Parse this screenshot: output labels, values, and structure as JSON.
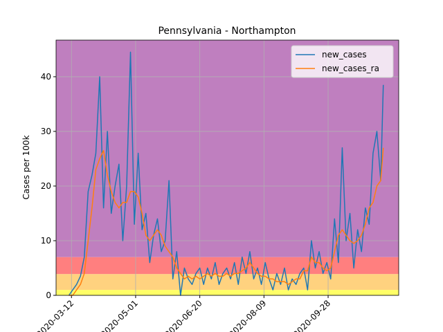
{
  "chart_data": {
    "type": "line",
    "title": "Pennsylvania - Northampton",
    "y_label": "Cases per 100k",
    "x": [
      "2020-03-10",
      "2020-03-13",
      "2020-03-16",
      "2020-03-19",
      "2020-03-22",
      "2020-03-25",
      "2020-03-28",
      "2020-03-31",
      "2020-04-03",
      "2020-04-06",
      "2020-04-09",
      "2020-04-12",
      "2020-04-15",
      "2020-04-18",
      "2020-04-21",
      "2020-04-24",
      "2020-04-27",
      "2020-04-30",
      "2020-05-03",
      "2020-05-06",
      "2020-05-09",
      "2020-05-12",
      "2020-05-15",
      "2020-05-18",
      "2020-05-21",
      "2020-05-24",
      "2020-05-27",
      "2020-05-30",
      "2020-06-02",
      "2020-06-05",
      "2020-06-08",
      "2020-06-11",
      "2020-06-14",
      "2020-06-17",
      "2020-06-20",
      "2020-06-23",
      "2020-06-26",
      "2020-06-29",
      "2020-07-02",
      "2020-07-05",
      "2020-07-08",
      "2020-07-11",
      "2020-07-14",
      "2020-07-17",
      "2020-07-20",
      "2020-07-23",
      "2020-07-26",
      "2020-07-29",
      "2020-08-01",
      "2020-08-04",
      "2020-08-07",
      "2020-08-10",
      "2020-08-13",
      "2020-08-16",
      "2020-08-19",
      "2020-08-22",
      "2020-08-25",
      "2020-08-28",
      "2020-08-31",
      "2020-09-03",
      "2020-09-06",
      "2020-09-09",
      "2020-09-12",
      "2020-09-15",
      "2020-09-18",
      "2020-09-21",
      "2020-09-24",
      "2020-09-27",
      "2020-09-30",
      "2020-10-03",
      "2020-10-06",
      "2020-10-09",
      "2020-10-12",
      "2020-10-15",
      "2020-10-18",
      "2020-10-21",
      "2020-10-24",
      "2020-10-27",
      "2020-10-30",
      "2020-11-02",
      "2020-11-05",
      "2020-11-08",
      "2020-11-10"
    ],
    "series": [
      {
        "name": "new_cases",
        "color": "#1f77b4",
        "values": [
          0,
          1,
          2,
          3.5,
          7,
          19,
          22,
          26,
          40,
          16,
          30,
          15,
          20,
          24,
          10,
          20,
          44.5,
          13,
          26,
          12,
          15,
          6,
          11,
          14,
          8,
          10,
          21,
          3,
          8,
          0,
          5,
          3,
          2,
          4,
          5,
          2,
          5,
          3,
          6,
          2,
          4,
          5,
          3,
          6,
          2,
          7,
          4,
          8,
          3,
          5,
          2,
          6,
          3,
          1,
          4,
          2,
          5,
          1,
          3,
          2,
          4,
          5,
          1,
          10,
          5,
          8,
          4,
          6,
          3,
          14,
          6,
          27,
          10,
          15,
          5,
          12,
          8,
          16,
          13,
          26,
          30,
          21,
          38.5
        ]
      },
      {
        "name": "new_cases_ra",
        "color": "#ff7f0e",
        "values": [
          0,
          0,
          1,
          2,
          4,
          10,
          16,
          23,
          25,
          26.5,
          22,
          19,
          17,
          16,
          17,
          17,
          19,
          19,
          18,
          15,
          11,
          10,
          11,
          12,
          11,
          9,
          8,
          7,
          5,
          4,
          3,
          3.5,
          3,
          3.5,
          3,
          3.5,
          4,
          3.5,
          4,
          3.5,
          3.5,
          4,
          3.5,
          4,
          4,
          4.5,
          5,
          6,
          5,
          4,
          3.5,
          3.5,
          3,
          3,
          2.5,
          2.5,
          2.5,
          2,
          2.5,
          3,
          3,
          4.5,
          4.5,
          7,
          6,
          6,
          5,
          4.5,
          5,
          8,
          11,
          12,
          11,
          10,
          9.5,
          10,
          11,
          13,
          16,
          17,
          20,
          21,
          27
        ]
      }
    ],
    "xlim": [
      "2020-02-29",
      "2020-11-22"
    ],
    "xticks": [
      "2020-03-12",
      "2020-05-01",
      "2020-06-20",
      "2020-08-09",
      "2020-09-28"
    ],
    "ylim": [
      0,
      46.7
    ],
    "yticks": [
      0,
      10,
      20,
      30,
      40
    ],
    "grid": true,
    "legend": "upper right",
    "bands": [
      {
        "from": 0,
        "to": 1,
        "color": "#ffff66"
      },
      {
        "from": 1,
        "to": 3.9,
        "color": "#ffd27f"
      },
      {
        "from": 3.9,
        "to": 7,
        "color": "#ff7f7f"
      },
      {
        "from": 7,
        "to": 46.7,
        "color": "#bf7fbf"
      }
    ]
  }
}
